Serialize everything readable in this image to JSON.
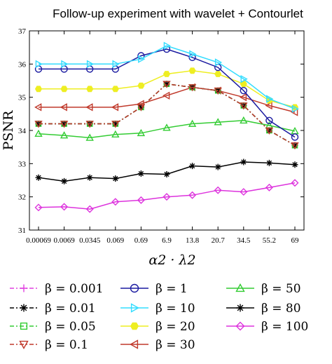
{
  "chart_data": {
    "type": "line",
    "title": "Follow-up experiment with wavelet + Contourlet",
    "xlabel": "α2 · λ2",
    "ylabel": "PSNR",
    "categories": [
      "0.00069",
      "0.0069",
      "0.0345",
      "0.069",
      "0.69",
      "6.9",
      "13.8",
      "20.7",
      "34.5",
      "55.2",
      "69"
    ],
    "ylim": [
      31,
      37
    ],
    "yticks": [
      "31",
      "32",
      "33",
      "34",
      "35",
      "36",
      "37"
    ],
    "grid": false,
    "legend_position": "bottom",
    "series": [
      {
        "name": "β = 0.001",
        "color": "#e040e0",
        "marker": "plus",
        "dash": "6,3,2,3",
        "values": [
          34.2,
          34.2,
          34.2,
          34.2,
          34.7,
          35.4,
          35.3,
          35.2,
          34.75,
          34.0,
          33.55
        ]
      },
      {
        "name": "β = 0.01",
        "color": "#000000",
        "marker": "star",
        "dash": "6,3,2,3",
        "values": [
          34.2,
          34.2,
          34.2,
          34.2,
          34.7,
          35.4,
          35.3,
          35.2,
          34.75,
          34.0,
          33.55
        ]
      },
      {
        "name": "β = 0.05",
        "color": "#33cc33",
        "marker": "square",
        "dash": "6,3,2,3",
        "values": [
          34.2,
          34.2,
          34.2,
          34.2,
          34.7,
          35.4,
          35.3,
          35.2,
          34.75,
          34.0,
          33.55
        ]
      },
      {
        "name": "β = 0.1",
        "color": "#c0392b",
        "marker": "triangle-down",
        "dash": "6,3,2,3",
        "values": [
          34.2,
          34.2,
          34.2,
          34.2,
          34.7,
          35.4,
          35.3,
          35.2,
          34.75,
          34.0,
          33.55
        ]
      },
      {
        "name": "β = 1",
        "color": "#1a1aa0",
        "marker": "circle",
        "dash": "",
        "values": [
          35.85,
          35.85,
          35.85,
          35.85,
          36.25,
          36.45,
          36.2,
          35.9,
          35.2,
          34.3,
          33.8
        ]
      },
      {
        "name": "β = 10",
        "color": "#33ddff",
        "marker": "triangle-right",
        "dash": "",
        "values": [
          36.0,
          36.0,
          36.0,
          36.0,
          36.15,
          36.55,
          36.3,
          36.05,
          35.55,
          34.95,
          34.65
        ]
      },
      {
        "name": "β = 20",
        "color": "#eeee22",
        "marker": "hexagon",
        "dash": "",
        "values": [
          35.25,
          35.25,
          35.25,
          35.25,
          35.35,
          35.7,
          35.8,
          35.7,
          35.4,
          34.9,
          34.7
        ]
      },
      {
        "name": "β = 30",
        "color": "#c0392b",
        "marker": "triangle-left",
        "dash": "",
        "values": [
          34.7,
          34.7,
          34.7,
          34.7,
          34.8,
          35.05,
          35.3,
          35.2,
          35.0,
          34.75,
          34.55
        ]
      },
      {
        "name": "β = 50",
        "color": "#33cc33",
        "marker": "triangle-up",
        "dash": "",
        "values": [
          33.9,
          33.85,
          33.78,
          33.88,
          33.92,
          34.08,
          34.2,
          34.25,
          34.3,
          34.15,
          33.98
        ]
      },
      {
        "name": "β = 80",
        "color": "#000000",
        "marker": "star",
        "dash": "",
        "values": [
          32.58,
          32.47,
          32.58,
          32.55,
          32.7,
          32.68,
          32.93,
          32.9,
          33.05,
          33.02,
          32.97
        ]
      },
      {
        "name": "β = 100",
        "color": "#dd33dd",
        "marker": "diamond",
        "dash": "",
        "values": [
          31.68,
          31.7,
          31.63,
          31.85,
          31.9,
          32.0,
          32.05,
          32.2,
          32.15,
          32.28,
          32.42
        ]
      }
    ]
  }
}
